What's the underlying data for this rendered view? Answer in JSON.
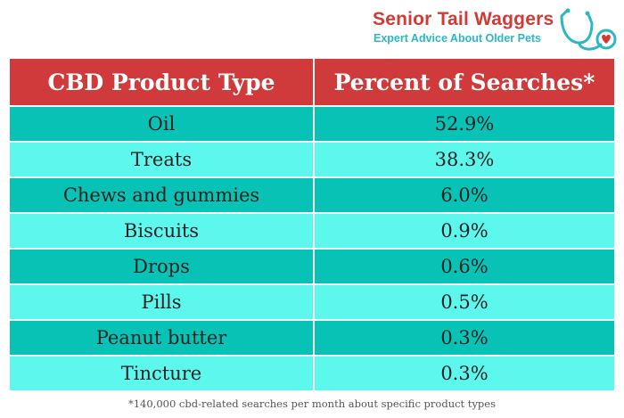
{
  "brand": {
    "name": "Senior Tail Waggers",
    "tagline": "Expert Advice About Older Pets",
    "logo_icon": "stethoscope-heart-icon",
    "name_color": "#d23a35",
    "tagline_color": "#2bb7c6"
  },
  "table": {
    "headers": [
      "CBD Product Type",
      "Percent of Searches*"
    ],
    "header_color": "#d03a3a",
    "row_colors": [
      "#07c2b5",
      "#5cf7ed"
    ],
    "rows": [
      {
        "type": "Oil",
        "percent": "52.9%"
      },
      {
        "type": "Treats",
        "percent": "38.3%"
      },
      {
        "type": "Chews and gummies",
        "percent": "6.0%"
      },
      {
        "type": "Biscuits",
        "percent": "0.9%"
      },
      {
        "type": "Drops",
        "percent": "0.6%"
      },
      {
        "type": "Pills",
        "percent": "0.5%"
      },
      {
        "type": "Peanut butter",
        "percent": "0.3%"
      },
      {
        "type": "Tincture",
        "percent": "0.3%"
      }
    ]
  },
  "footnote": "*140,000 cbd-related searches per month about specific product types"
}
